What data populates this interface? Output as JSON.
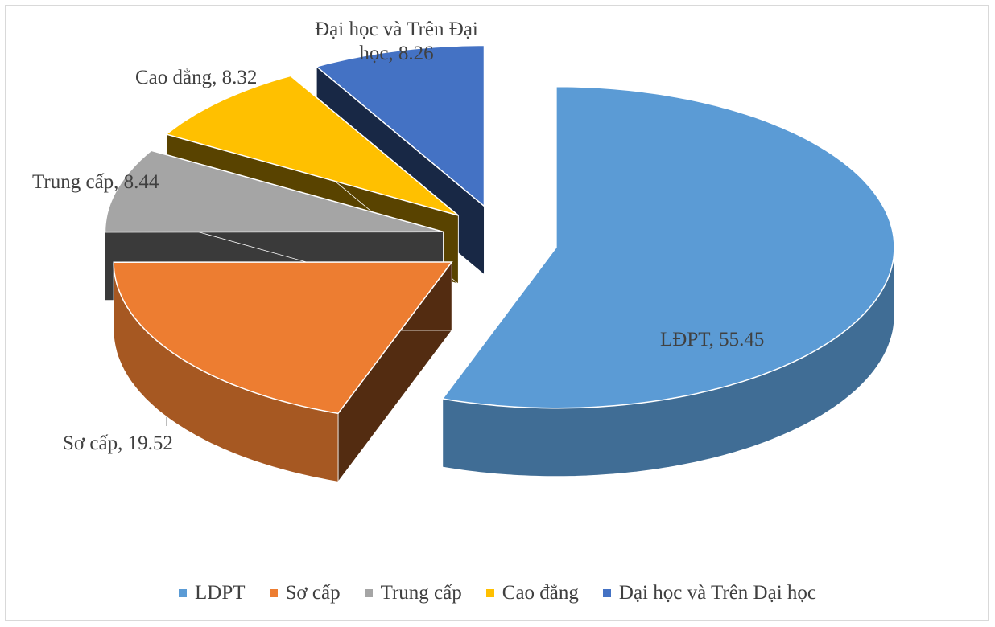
{
  "chart_data": {
    "type": "pie3d",
    "categories": [
      "LĐPT",
      "Sơ cấp",
      "Trung cấp",
      "Cao đẳng",
      "Đại học và Trên Đại học"
    ],
    "values": [
      55.45,
      19.52,
      8.44,
      8.32,
      8.26
    ],
    "value_labels": [
      "LĐPT, 55.45",
      "Sơ cấp, 19.52",
      "Trung cấp, 8.44",
      "Cao đẳng, 8.32",
      "Đại học và Trên Đại học, 8.26"
    ],
    "colors": [
      "#5b9bd5",
      "#ed7d31",
      "#a5a5a5",
      "#ffc000",
      "#4472c4"
    ],
    "legend": "bottom"
  }
}
